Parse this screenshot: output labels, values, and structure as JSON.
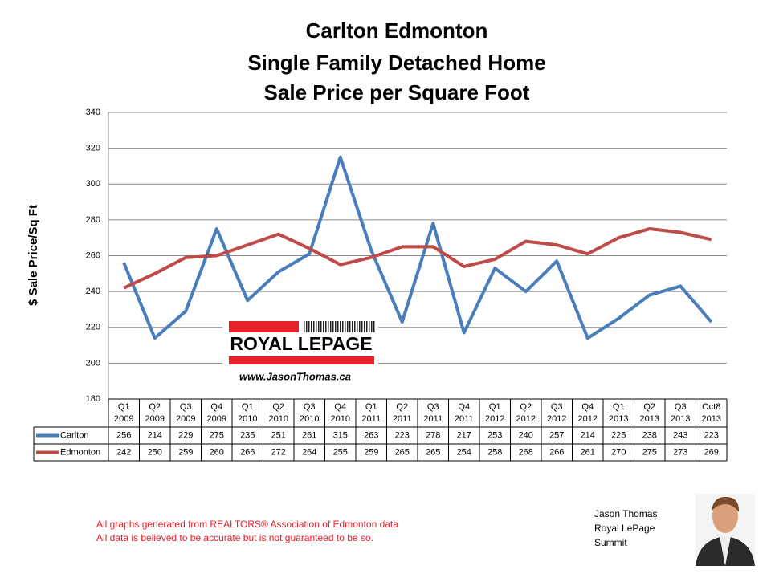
{
  "chart_data": {
    "type": "line",
    "title": [
      "Carlton Edmonton",
      "Single Family Detached Home",
      "Sale Price per Square Foot"
    ],
    "y_label": "$ Sale Price/Sq Ft",
    "categories": [
      [
        "Q1",
        "2009"
      ],
      [
        "Q2",
        "2009"
      ],
      [
        "Q3",
        "2009"
      ],
      [
        "Q4",
        "2009"
      ],
      [
        "Q1",
        "2010"
      ],
      [
        "Q2",
        "2010"
      ],
      [
        "Q3",
        "2010"
      ],
      [
        "Q4",
        "2010"
      ],
      [
        "Q1",
        "2011"
      ],
      [
        "Q2",
        "2011"
      ],
      [
        "Q3",
        "2011"
      ],
      [
        "Q4",
        "2011"
      ],
      [
        "Q1",
        "2012"
      ],
      [
        "Q2",
        "2012"
      ],
      [
        "Q3",
        "2012"
      ],
      [
        "Q4",
        "2012"
      ],
      [
        "Q1",
        "2013"
      ],
      [
        "Q2",
        "2013"
      ],
      [
        "Q3",
        "2013"
      ],
      [
        "Oct8",
        "2013"
      ]
    ],
    "series": [
      {
        "name": "Carlton",
        "color": "#4a7ebb",
        "values": [
          256,
          214,
          229,
          275,
          235,
          251,
          261,
          315,
          263,
          223,
          278,
          217,
          253,
          240,
          257,
          214,
          225,
          238,
          243,
          223
        ]
      },
      {
        "name": "Edmonton",
        "color": "#be4b48",
        "values": [
          242,
          250,
          259,
          260,
          266,
          272,
          264,
          255,
          259,
          265,
          265,
          254,
          258,
          268,
          266,
          261,
          270,
          275,
          273,
          269
        ]
      }
    ],
    "ylim": [
      180,
      340
    ],
    "yticks": [
      180,
      200,
      220,
      240,
      260,
      280,
      300,
      320,
      340
    ],
    "grid": true,
    "data_table": true
  },
  "logo": {
    "brand": "ROYAL LEPAGE",
    "website": "www.JasonThomas.ca"
  },
  "footer": [
    "All graphs generated from REALTORS® Association of Edmonton data",
    "All data is believed to be accurate but is not guaranteed to be so."
  ],
  "agent": [
    "Jason Thomas",
    "Royal LePage",
    "Summit"
  ]
}
